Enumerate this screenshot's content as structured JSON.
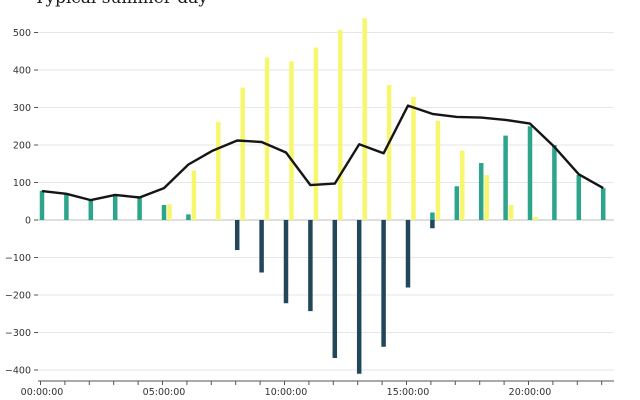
{
  "chart_data": {
    "type": "bar",
    "title": "Typical summer day",
    "x": [
      "00:00",
      "01:00",
      "02:00",
      "03:00",
      "04:00",
      "05:00",
      "06:00",
      "07:00",
      "08:00",
      "09:00",
      "10:00",
      "11:00",
      "12:00",
      "13:00",
      "14:00",
      "15:00",
      "16:00",
      "17:00",
      "18:00",
      "19:00",
      "20:00",
      "21:00",
      "22:00",
      "23:00"
    ],
    "x_tick_labels": [
      "00:00:00",
      "05:00:00",
      "10:00:00",
      "15:00:00",
      "20:00:00"
    ],
    "y_ticks": [
      -400,
      -300,
      -200,
      -100,
      0,
      100,
      200,
      300,
      400,
      500
    ],
    "ylim": [
      -420,
      540
    ],
    "grid": true,
    "series": [
      {
        "kind": "bar",
        "color": "#2ca58a",
        "values": [
          78,
          68,
          55,
          65,
          62,
          40,
          15,
          0,
          0,
          0,
          0,
          0,
          0,
          0,
          0,
          0,
          20,
          90,
          152,
          225,
          250,
          200,
          120,
          85
        ]
      },
      {
        "kind": "bar",
        "color": "#f7f76e",
        "values": [
          0,
          0,
          0,
          0,
          0,
          42,
          132,
          262,
          353,
          433,
          423,
          460,
          507,
          538,
          360,
          328,
          265,
          185,
          120,
          40,
          8,
          0,
          0,
          0
        ]
      },
      {
        "kind": "bar",
        "color": "#23475a",
        "values": [
          0,
          0,
          0,
          0,
          0,
          0,
          0,
          0,
          -80,
          -140,
          -222,
          -243,
          -368,
          -410,
          -338,
          -180,
          -22,
          0,
          0,
          0,
          0,
          0,
          0,
          0
        ]
      },
      {
        "kind": "line",
        "color": "#151515",
        "values": [
          77,
          70,
          53,
          67,
          60,
          85,
          148,
          185,
          212,
          208,
          180,
          93,
          97,
          202,
          178,
          305,
          283,
          275,
          273,
          267,
          257,
          195,
          122,
          85
        ]
      }
    ]
  }
}
